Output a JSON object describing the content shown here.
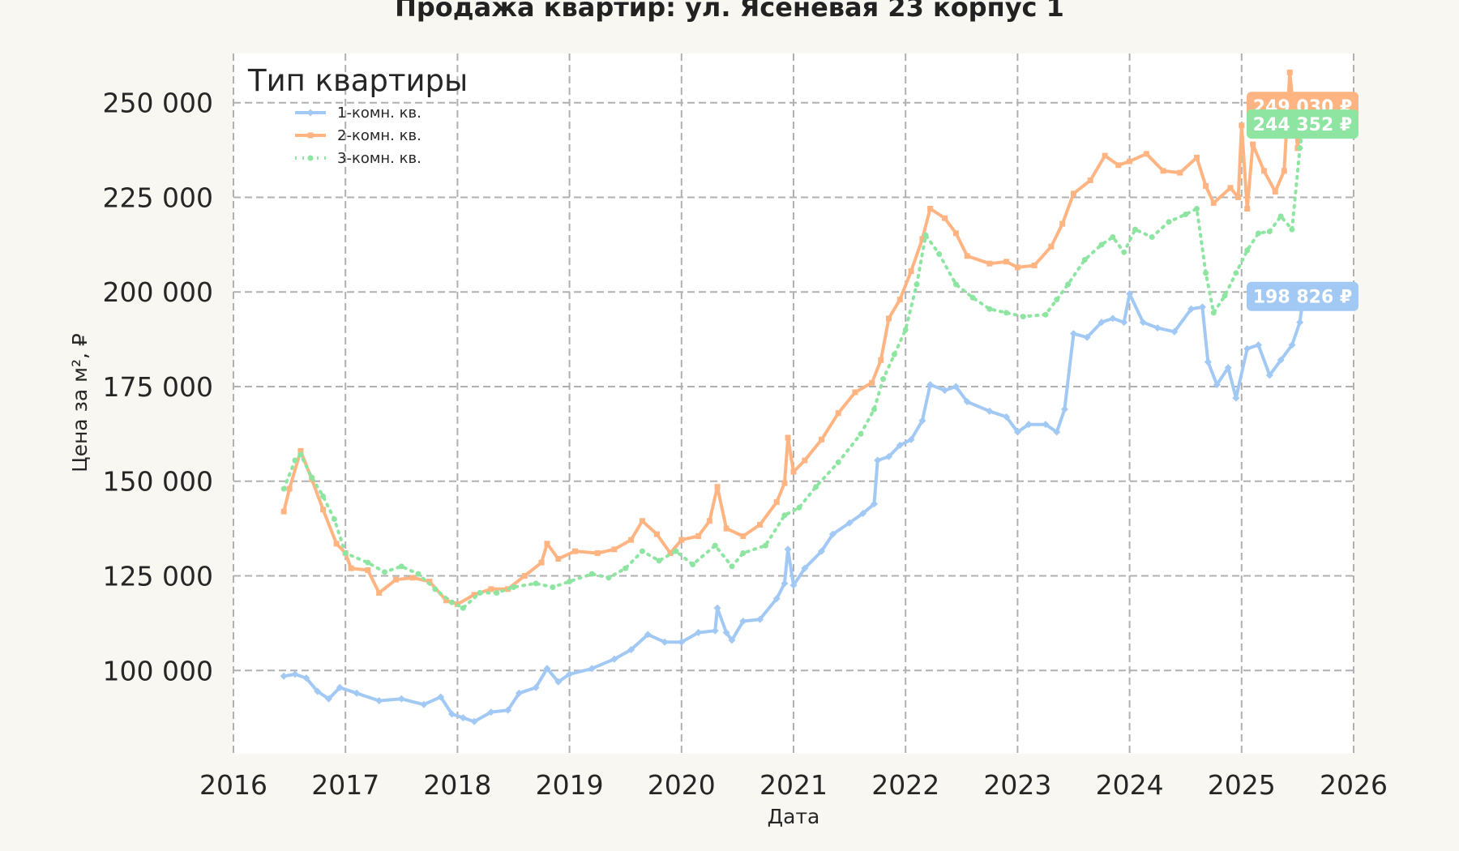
{
  "chart_data": {
    "type": "line",
    "title": "Продажа квартир: ул. Ясеневая 23 корпус 1",
    "xlabel": "Дата",
    "ylabel": "Цена за м², ₽",
    "xlim": [
      2016,
      2026
    ],
    "ylim": [
      78000,
      263000
    ],
    "x_ticks": [
      2016,
      2017,
      2018,
      2019,
      2020,
      2021,
      2022,
      2023,
      2024,
      2025,
      2026
    ],
    "x_tick_labels": [
      "2016",
      "2017",
      "2018",
      "2019",
      "2020",
      "2021",
      "2022",
      "2023",
      "2024",
      "2025",
      "2026"
    ],
    "y_ticks": [
      100000,
      125000,
      150000,
      175000,
      200000,
      225000,
      250000
    ],
    "y_tick_labels": [
      "100 000",
      "125 000",
      "150 000",
      "175 000",
      "200 000",
      "225 000",
      "250 000"
    ],
    "grid": true,
    "legend": {
      "title": "Тип квартиры",
      "placement": "top-left"
    },
    "series": [
      {
        "name": "1-комн. кв.",
        "color": "#a1c9f4",
        "style": "solid",
        "marker": "diamond",
        "end_label": "198 826 ₽",
        "end_value": 198826,
        "points": [
          [
            2016.45,
            98500
          ],
          [
            2016.55,
            99000
          ],
          [
            2016.65,
            98000
          ],
          [
            2016.75,
            94500
          ],
          [
            2016.85,
            92500
          ],
          [
            2016.95,
            95500
          ],
          [
            2017.1,
            94000
          ],
          [
            2017.3,
            92000
          ],
          [
            2017.5,
            92500
          ],
          [
            2017.7,
            91000
          ],
          [
            2017.85,
            93000
          ],
          [
            2017.95,
            88500
          ],
          [
            2018.05,
            87500
          ],
          [
            2018.15,
            86500
          ],
          [
            2018.3,
            89000
          ],
          [
            2018.45,
            89500
          ],
          [
            2018.55,
            94000
          ],
          [
            2018.7,
            95500
          ],
          [
            2018.8,
            100500
          ],
          [
            2018.9,
            97000
          ],
          [
            2019.0,
            99000
          ],
          [
            2019.2,
            100500
          ],
          [
            2019.4,
            103000
          ],
          [
            2019.55,
            105500
          ],
          [
            2019.7,
            109500
          ],
          [
            2019.85,
            107500
          ],
          [
            2020.0,
            107500
          ],
          [
            2020.15,
            110000
          ],
          [
            2020.3,
            110500
          ],
          [
            2020.32,
            116500
          ],
          [
            2020.4,
            110000
          ],
          [
            2020.45,
            108000
          ],
          [
            2020.55,
            113000
          ],
          [
            2020.7,
            113500
          ],
          [
            2020.85,
            119000
          ],
          [
            2020.92,
            123000
          ],
          [
            2020.95,
            132000
          ],
          [
            2021.0,
            122500
          ],
          [
            2021.1,
            127000
          ],
          [
            2021.25,
            131500
          ],
          [
            2021.35,
            136000
          ],
          [
            2021.5,
            139000
          ],
          [
            2021.62,
            141500
          ],
          [
            2021.72,
            144000
          ],
          [
            2021.75,
            155500
          ],
          [
            2021.85,
            156500
          ],
          [
            2021.95,
            159500
          ],
          [
            2022.05,
            161000
          ],
          [
            2022.15,
            166000
          ],
          [
            2022.22,
            175500
          ],
          [
            2022.35,
            174000
          ],
          [
            2022.45,
            175000
          ],
          [
            2022.55,
            171000
          ],
          [
            2022.75,
            168500
          ],
          [
            2022.9,
            167000
          ],
          [
            2023.0,
            163000
          ],
          [
            2023.1,
            165000
          ],
          [
            2023.25,
            165000
          ],
          [
            2023.35,
            163000
          ],
          [
            2023.42,
            169000
          ],
          [
            2023.5,
            189000
          ],
          [
            2023.62,
            188000
          ],
          [
            2023.75,
            192000
          ],
          [
            2023.85,
            193000
          ],
          [
            2023.95,
            192000
          ],
          [
            2024.0,
            199500
          ],
          [
            2024.12,
            192000
          ],
          [
            2024.25,
            190500
          ],
          [
            2024.4,
            189500
          ],
          [
            2024.55,
            195500
          ],
          [
            2024.65,
            196000
          ],
          [
            2024.7,
            181500
          ],
          [
            2024.78,
            175500
          ],
          [
            2024.88,
            180000
          ],
          [
            2024.95,
            172000
          ],
          [
            2025.05,
            185000
          ],
          [
            2025.15,
            186000
          ],
          [
            2025.25,
            178000
          ],
          [
            2025.35,
            182000
          ],
          [
            2025.45,
            186000
          ],
          [
            2025.52,
            192000
          ],
          [
            2025.55,
            198826
          ]
        ]
      },
      {
        "name": "2-комн. кв.",
        "color": "#ffb482",
        "style": "solid",
        "marker": "square",
        "end_label": "249 030 ₽",
        "end_value": 249030,
        "points": [
          [
            2016.45,
            142000
          ],
          [
            2016.5,
            148000
          ],
          [
            2016.6,
            158000
          ],
          [
            2016.7,
            150500
          ],
          [
            2016.8,
            142500
          ],
          [
            2016.92,
            133500
          ],
          [
            2017.0,
            131000
          ],
          [
            2017.05,
            127000
          ],
          [
            2017.2,
            126500
          ],
          [
            2017.3,
            120500
          ],
          [
            2017.45,
            124000
          ],
          [
            2017.6,
            124500
          ],
          [
            2017.75,
            123500
          ],
          [
            2017.9,
            118500
          ],
          [
            2018.0,
            117500
          ],
          [
            2018.15,
            120000
          ],
          [
            2018.3,
            121500
          ],
          [
            2018.45,
            121500
          ],
          [
            2018.6,
            125000
          ],
          [
            2018.75,
            128500
          ],
          [
            2018.8,
            133500
          ],
          [
            2018.9,
            129500
          ],
          [
            2019.05,
            131500
          ],
          [
            2019.25,
            131000
          ],
          [
            2019.4,
            132000
          ],
          [
            2019.55,
            134500
          ],
          [
            2019.65,
            139500
          ],
          [
            2019.78,
            136000
          ],
          [
            2019.9,
            131000
          ],
          [
            2020.0,
            134500
          ],
          [
            2020.15,
            135500
          ],
          [
            2020.25,
            139500
          ],
          [
            2020.32,
            148500
          ],
          [
            2020.4,
            137500
          ],
          [
            2020.55,
            135500
          ],
          [
            2020.7,
            138500
          ],
          [
            2020.85,
            144500
          ],
          [
            2020.92,
            149500
          ],
          [
            2020.95,
            161500
          ],
          [
            2021.0,
            152500
          ],
          [
            2021.1,
            155500
          ],
          [
            2021.25,
            161000
          ],
          [
            2021.4,
            168000
          ],
          [
            2021.55,
            173500
          ],
          [
            2021.7,
            176000
          ],
          [
            2021.78,
            182000
          ],
          [
            2021.85,
            193000
          ],
          [
            2021.95,
            198000
          ],
          [
            2022.05,
            205500
          ],
          [
            2022.15,
            214000
          ],
          [
            2022.22,
            222000
          ],
          [
            2022.35,
            219500
          ],
          [
            2022.45,
            215500
          ],
          [
            2022.55,
            209500
          ],
          [
            2022.75,
            207500
          ],
          [
            2022.9,
            208000
          ],
          [
            2023.0,
            206500
          ],
          [
            2023.15,
            207000
          ],
          [
            2023.3,
            212000
          ],
          [
            2023.4,
            218000
          ],
          [
            2023.5,
            226000
          ],
          [
            2023.65,
            229500
          ],
          [
            2023.78,
            236000
          ],
          [
            2023.9,
            233500
          ],
          [
            2024.0,
            234500
          ],
          [
            2024.15,
            236500
          ],
          [
            2024.3,
            232000
          ],
          [
            2024.45,
            231500
          ],
          [
            2024.6,
            235500
          ],
          [
            2024.68,
            228000
          ],
          [
            2024.75,
            223500
          ],
          [
            2024.9,
            227500
          ],
          [
            2024.97,
            225000
          ],
          [
            2025.0,
            244000
          ],
          [
            2025.05,
            222000
          ],
          [
            2025.1,
            239000
          ],
          [
            2025.2,
            232000
          ],
          [
            2025.3,
            226500
          ],
          [
            2025.38,
            232000
          ],
          [
            2025.43,
            258000
          ],
          [
            2025.5,
            238000
          ],
          [
            2025.55,
            249030
          ]
        ]
      },
      {
        "name": "3-комн. кв.",
        "color": "#8de5a1",
        "style": "dotted",
        "marker": "circle",
        "end_label": "244 352 ₽",
        "end_value": 244352,
        "points": [
          [
            2016.45,
            148000
          ],
          [
            2016.55,
            155500
          ],
          [
            2016.6,
            157000
          ],
          [
            2016.7,
            151000
          ],
          [
            2016.8,
            146000
          ],
          [
            2016.9,
            140000
          ],
          [
            2017.0,
            131000
          ],
          [
            2017.2,
            128500
          ],
          [
            2017.35,
            126000
          ],
          [
            2017.5,
            127500
          ],
          [
            2017.65,
            125500
          ],
          [
            2017.8,
            121500
          ],
          [
            2017.95,
            118000
          ],
          [
            2018.05,
            116500
          ],
          [
            2018.2,
            120500
          ],
          [
            2018.35,
            120500
          ],
          [
            2018.5,
            122000
          ],
          [
            2018.7,
            123000
          ],
          [
            2018.85,
            122000
          ],
          [
            2019.0,
            123500
          ],
          [
            2019.2,
            125500
          ],
          [
            2019.35,
            124500
          ],
          [
            2019.5,
            127000
          ],
          [
            2019.65,
            131500
          ],
          [
            2019.8,
            129000
          ],
          [
            2019.95,
            131500
          ],
          [
            2020.1,
            128000
          ],
          [
            2020.3,
            133000
          ],
          [
            2020.45,
            127500
          ],
          [
            2020.55,
            131000
          ],
          [
            2020.75,
            133000
          ],
          [
            2020.92,
            141000
          ],
          [
            2021.05,
            143000
          ],
          [
            2021.2,
            148500
          ],
          [
            2021.4,
            155000
          ],
          [
            2021.6,
            162500
          ],
          [
            2021.72,
            169000
          ],
          [
            2021.8,
            177000
          ],
          [
            2021.9,
            183500
          ],
          [
            2022.0,
            190000
          ],
          [
            2022.1,
            202000
          ],
          [
            2022.18,
            215000
          ],
          [
            2022.3,
            210000
          ],
          [
            2022.45,
            202000
          ],
          [
            2022.6,
            198500
          ],
          [
            2022.75,
            195500
          ],
          [
            2022.9,
            194500
          ],
          [
            2023.05,
            193500
          ],
          [
            2023.25,
            194000
          ],
          [
            2023.35,
            198000
          ],
          [
            2023.45,
            202000
          ],
          [
            2023.6,
            208500
          ],
          [
            2023.75,
            212500
          ],
          [
            2023.85,
            214500
          ],
          [
            2023.95,
            210500
          ],
          [
            2024.05,
            216500
          ],
          [
            2024.2,
            214500
          ],
          [
            2024.35,
            218500
          ],
          [
            2024.5,
            220500
          ],
          [
            2024.6,
            222000
          ],
          [
            2024.68,
            205000
          ],
          [
            2024.75,
            194500
          ],
          [
            2024.85,
            199000
          ],
          [
            2024.95,
            205000
          ],
          [
            2025.05,
            211000
          ],
          [
            2025.15,
            215500
          ],
          [
            2025.25,
            216000
          ],
          [
            2025.35,
            220000
          ],
          [
            2025.45,
            216500
          ],
          [
            2025.52,
            238000
          ],
          [
            2025.55,
            244352
          ]
        ]
      }
    ]
  }
}
